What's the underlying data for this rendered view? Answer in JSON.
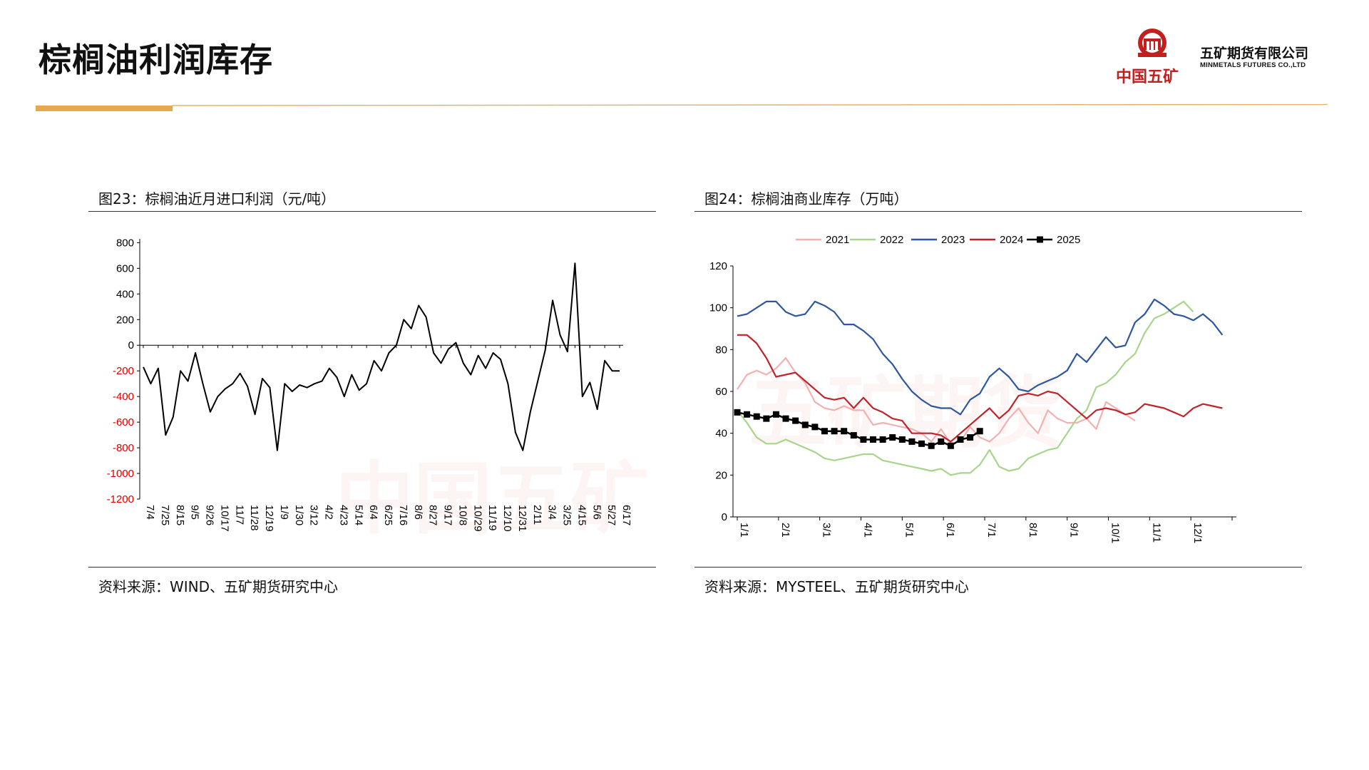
{
  "page": {
    "title": "棕榈油利润库存",
    "logo": {
      "cn": "中国五矿",
      "company": "五矿期货有限公司",
      "company_en": "MINMETALS FUTURES CO.,LTD"
    },
    "watermark": {
      "cn": "中国五矿",
      "cn2": "五矿期货"
    },
    "colors": {
      "title_rule_left": "#e0a040",
      "title_rule_right": "#f0c890",
      "logo_red": "#c21f1f"
    }
  },
  "chart_data": [
    {
      "type": "line",
      "title": "图23：棕榈油近月进口利润（元/吨）",
      "source": "资料来源：WIND、五矿期货研究中心",
      "xlabel": "",
      "ylabel": "",
      "ylim": [
        -1200,
        830
      ],
      "y_ticks": [
        "800",
        "600",
        "400",
        "200",
        "0",
        "-200",
        "-400",
        "-600",
        "-800",
        "-1000",
        "-1200"
      ],
      "y_tick_values": [
        800,
        600,
        400,
        200,
        0,
        -200,
        -400,
        -600,
        -800,
        -1000,
        -1200
      ],
      "negative_tick_color": "#e00000",
      "x_ticks": [
        "7/4",
        "7/25",
        "8/15",
        "9/5",
        "9/26",
        "10/17",
        "11/7",
        "11/28",
        "12/19",
        "1/9",
        "1/30",
        "3/12",
        "4/2",
        "4/23",
        "5/14",
        "6/4",
        "6/25",
        "7/16",
        "8/6",
        "8/27",
        "9/17",
        "10/8",
        "10/29",
        "11/19",
        "12/10",
        "12/31",
        "2/11",
        "3/4",
        "3/25",
        "4/15",
        "5/6",
        "5/27",
        "6/17"
      ],
      "grid": false,
      "series": [
        {
          "color": "#000000",
          "x": [
            0,
            0.5,
            1,
            1.5,
            2,
            2.5,
            3,
            3.5,
            4,
            4.5,
            5,
            5.5,
            6,
            6.5,
            7,
            7.5,
            8,
            8.5,
            9,
            9.5,
            10,
            10.5,
            11,
            11.5,
            12,
            12.5,
            13,
            13.5,
            14,
            14.5,
            15,
            15.5,
            16,
            16.5,
            17,
            17.5,
            18,
            18.5,
            19,
            19.5,
            20,
            20.5,
            21,
            21.5,
            22,
            22.5,
            23,
            23.5,
            24,
            24.5,
            25,
            25.5,
            26,
            26.5,
            27,
            27.5,
            28,
            28.5,
            29,
            29.5,
            30,
            30.5,
            31,
            31.5,
            32
          ],
          "values": [
            -170,
            -300,
            -180,
            -700,
            -560,
            -200,
            -280,
            -60,
            -300,
            -520,
            -400,
            -340,
            -300,
            -220,
            -320,
            -540,
            -260,
            -330,
            -820,
            -300,
            -360,
            -310,
            -330,
            -300,
            -280,
            -180,
            -250,
            -400,
            -230,
            -350,
            -300,
            -120,
            -200,
            -60,
            0,
            200,
            130,
            310,
            220,
            -60,
            -140,
            -30,
            20,
            -140,
            -230,
            -80,
            -180,
            -60,
            -110,
            -300,
            -680,
            -820,
            -520,
            -280,
            -40,
            350,
            80,
            -50,
            640,
            -400,
            -290,
            -500,
            -120,
            -200,
            -200
          ]
        }
      ]
    },
    {
      "type": "line",
      "title": "图24：棕榈油商业库存（万吨）",
      "source": "资料来源：MYSTEEL、五矿期货研究中心",
      "xlabel": "",
      "ylabel": "",
      "ylim": [
        0,
        120
      ],
      "y_ticks": [
        "0",
        "20",
        "40",
        "60",
        "80",
        "100",
        "120"
      ],
      "y_tick_values": [
        0,
        20,
        40,
        60,
        80,
        100,
        120
      ],
      "x_ticks": [
        "1/1",
        "2/1",
        "3/1",
        "4/1",
        "5/1",
        "6/1",
        "7/1",
        "8/1",
        "9/1",
        "10/1",
        "11/1",
        "12/1"
      ],
      "legend_position": "top",
      "grid": false,
      "series": [
        {
          "name": "2021",
          "color": "#f2b0b0",
          "values": [
            61,
            68,
            70,
            68,
            71,
            76,
            69,
            64,
            55,
            52,
            51,
            53,
            51,
            51,
            44,
            45,
            44,
            43,
            42,
            40,
            36,
            42,
            35,
            36,
            43,
            38,
            36,
            40,
            47,
            52,
            45,
            40,
            51,
            47,
            45,
            45,
            47,
            42,
            55,
            52,
            49,
            46
          ]
        },
        {
          "name": "2022",
          "color": "#a8d48c",
          "values": [
            51,
            45,
            38,
            35,
            35,
            37,
            35,
            33,
            31,
            28,
            27,
            28,
            29,
            30,
            30,
            27,
            26,
            25,
            24,
            23,
            22,
            23,
            20,
            21,
            21,
            25,
            32,
            24,
            22,
            23,
            28,
            30,
            32,
            33,
            40,
            47,
            51,
            62,
            64,
            68,
            74,
            78,
            88,
            95,
            97,
            100,
            103,
            98
          ]
        },
        {
          "name": "2023",
          "color": "#2e57a0",
          "values": [
            96,
            97,
            100,
            103,
            103,
            98,
            96,
            97,
            103,
            101,
            98,
            92,
            92,
            89,
            85,
            78,
            73,
            66,
            60,
            56,
            53,
            52,
            52,
            49,
            56,
            59,
            67,
            71,
            67,
            61,
            60,
            63,
            65,
            67,
            70,
            78,
            74,
            80,
            86,
            81,
            82,
            93,
            97,
            104,
            101,
            97,
            96,
            94,
            97,
            93,
            87
          ]
        },
        {
          "name": "2024",
          "color": "#c0232a",
          "values": [
            87,
            87,
            83,
            76,
            67,
            68,
            69,
            65,
            61,
            57,
            56,
            57,
            52,
            57,
            52,
            50,
            47,
            46,
            40,
            40,
            40,
            39,
            36,
            40,
            44,
            48,
            52,
            47,
            51,
            58,
            59,
            58,
            60,
            59,
            55,
            51,
            47,
            51,
            52,
            51,
            49,
            50,
            54,
            53,
            52,
            50,
            48,
            52,
            54,
            53,
            52
          ]
        },
        {
          "name": "2025",
          "color": "#000000",
          "marker": "square",
          "values": [
            50,
            49,
            48,
            47,
            49,
            47,
            46,
            44,
            43,
            41,
            41,
            41,
            39,
            37,
            37,
            37,
            38,
            37,
            36,
            35,
            34,
            36,
            34,
            37,
            38,
            41
          ]
        }
      ]
    }
  ]
}
